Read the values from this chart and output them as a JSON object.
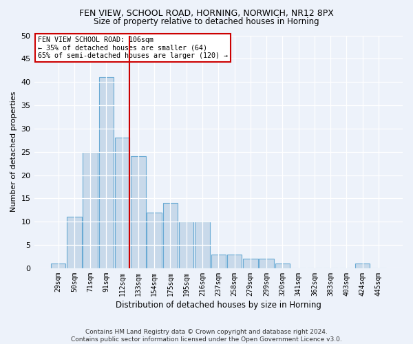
{
  "title1": "FEN VIEW, SCHOOL ROAD, HORNING, NORWICH, NR12 8PX",
  "title2": "Size of property relative to detached houses in Horning",
  "xlabel": "Distribution of detached houses by size in Horning",
  "ylabel": "Number of detached properties",
  "bar_color": "#c8d9ea",
  "bar_edge_color": "#6aaad4",
  "categories": [
    "29sqm",
    "50sqm",
    "71sqm",
    "91sqm",
    "112sqm",
    "133sqm",
    "154sqm",
    "175sqm",
    "195sqm",
    "216sqm",
    "237sqm",
    "258sqm",
    "279sqm",
    "299sqm",
    "320sqm",
    "341sqm",
    "362sqm",
    "383sqm",
    "403sqm",
    "424sqm",
    "445sqm"
  ],
  "values": [
    1,
    11,
    25,
    41,
    28,
    24,
    12,
    14,
    10,
    10,
    3,
    3,
    2,
    2,
    1,
    0,
    0,
    0,
    0,
    1,
    0
  ],
  "vline_color": "#cc0000",
  "annotation_line1": "FEN VIEW SCHOOL ROAD: 106sqm",
  "annotation_line2": "← 35% of detached houses are smaller (64)",
  "annotation_line3": "65% of semi-detached houses are larger (120) →",
  "annotation_box_color": "#ffffff",
  "annotation_box_edge": "#cc0000",
  "ylim": [
    0,
    50
  ],
  "yticks": [
    0,
    5,
    10,
    15,
    20,
    25,
    30,
    35,
    40,
    45,
    50
  ],
  "footer": "Contains HM Land Registry data © Crown copyright and database right 2024.\nContains public sector information licensed under the Open Government Licence v3.0.",
  "bg_color": "#edf2fa"
}
